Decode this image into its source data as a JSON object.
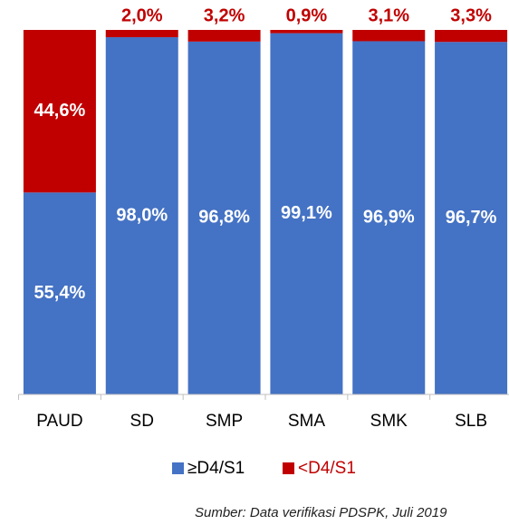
{
  "chart_data": {
    "type": "stacked_bar_100",
    "categories": [
      "PAUD",
      "SD",
      "SMP",
      "SMA",
      "SMK",
      "SLB"
    ],
    "series": [
      {
        "name": "≥D4/S1",
        "color": "#4472c4",
        "values": [
          55.4,
          98.0,
          96.8,
          99.1,
          96.9,
          96.7
        ],
        "value_labels": [
          "55,4%",
          "98,0%",
          "96,8%",
          "99,1%",
          "96,9%",
          "96,7%"
        ]
      },
      {
        "name": "<D4/S1",
        "color": "#c00000",
        "values": [
          44.6,
          2.0,
          3.2,
          0.9,
          3.1,
          3.3
        ],
        "value_labels": [
          "44,6%",
          "2,0%",
          "3,2%",
          "0,9%",
          "3,1%",
          "3,3%"
        ]
      }
    ],
    "ylim": [
      0,
      100
    ],
    "source": "Sumber:  Data verifikasi PDSPK, Juli 2019"
  }
}
